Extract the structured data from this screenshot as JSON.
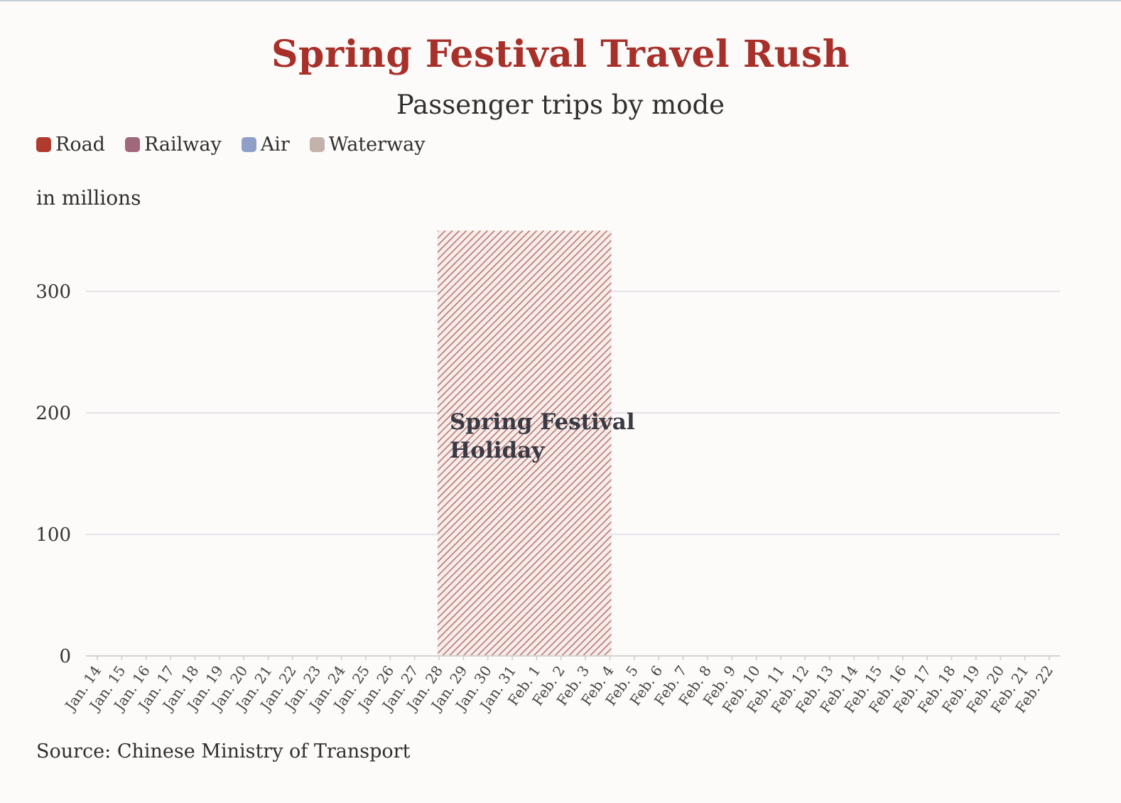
{
  "chart_data": {
    "type": "bar",
    "title": "Spring Festival Travel Rush",
    "subtitle": "Passenger trips by mode",
    "ylabel": "in millions",
    "ylim": [
      0,
      350
    ],
    "yticks": [
      0,
      100,
      200,
      300
    ],
    "grid": true,
    "legend_position": "top-left",
    "x": [
      "Jan. 14",
      "Jan. 15",
      "Jan. 16",
      "Jan. 17",
      "Jan. 18",
      "Jan. 19",
      "Jan. 20",
      "Jan. 21",
      "Jan. 22",
      "Jan. 23",
      "Jan. 24",
      "Jan. 25",
      "Jan. 26",
      "Jan. 27",
      "Jan. 28",
      "Jan. 29",
      "Jan. 30",
      "Jan. 31",
      "Feb. 1",
      "Feb. 2",
      "Feb. 3",
      "Feb. 4",
      "Feb. 5",
      "Feb. 6",
      "Feb. 7",
      "Feb. 8",
      "Feb. 9",
      "Feb. 10",
      "Feb. 11",
      "Feb. 12",
      "Feb. 13",
      "Feb. 14",
      "Feb. 15",
      "Feb. 16",
      "Feb. 17",
      "Feb. 18",
      "Feb. 19",
      "Feb. 20",
      "Feb. 21",
      "Feb. 22"
    ],
    "series": [
      {
        "name": "Road",
        "color": "#b03a2e"
      },
      {
        "name": "Railway",
        "color": "#a0687a"
      },
      {
        "name": "Air",
        "color": "#8ea0c8"
      },
      {
        "name": "Waterway",
        "color": "#c3b2ac"
      }
    ],
    "annotation": {
      "lines": [
        "Spring Festival",
        "Holiday"
      ],
      "start": "Jan. 28",
      "end": "Feb. 4",
      "top_value": 350,
      "color": "#b5736f"
    },
    "source": "Source: Chinese Ministry of Transport"
  }
}
